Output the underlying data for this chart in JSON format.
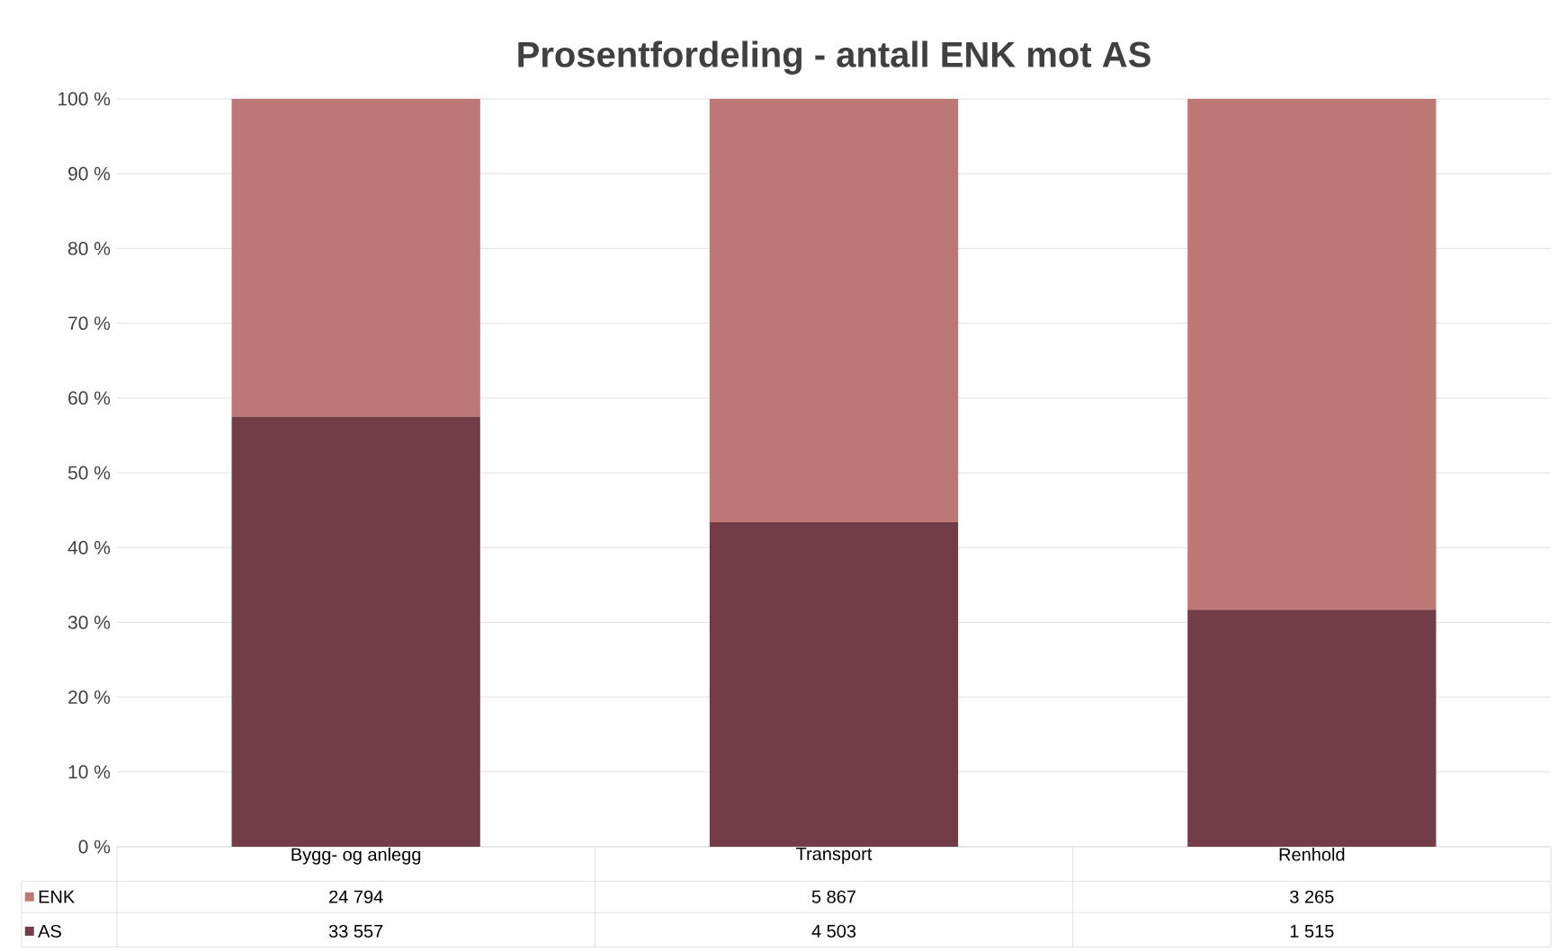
{
  "chart_data": {
    "type": "bar",
    "title": "Prosentfordeling - antall ENK mot AS",
    "stacked": true,
    "categories": [
      "Bygg- og anlegg",
      "Transport",
      "Renhold"
    ],
    "series": [
      {
        "name": "AS",
        "color": "#733d48",
        "values": [
          57.5,
          43.4,
          31.7
        ]
      },
      {
        "name": "ENK",
        "color": "#bd7775",
        "values": [
          42.5,
          56.6,
          68.3
        ]
      }
    ],
    "annotations": [
      "24 794",
      "5 867",
      "3 265",
      "33 557",
      "4 503",
      "1 515"
    ],
    "ylim": [
      0,
      100
    ],
    "yticks": [
      {
        "value": 0,
        "label": "0 %"
      },
      {
        "value": 10,
        "label": "10 %"
      },
      {
        "value": 20,
        "label": "20 %"
      },
      {
        "value": 30,
        "label": "30 %"
      },
      {
        "value": 40,
        "label": "40 %"
      },
      {
        "value": 50,
        "label": "50 %"
      },
      {
        "value": 60,
        "label": "60 %"
      },
      {
        "value": 70,
        "label": "70 %"
      },
      {
        "value": 80,
        "label": "80 %"
      },
      {
        "value": 90,
        "label": "90 %"
      },
      {
        "value": 100,
        "label": "100 %"
      }
    ],
    "grid": "y",
    "legend": "bottom"
  }
}
